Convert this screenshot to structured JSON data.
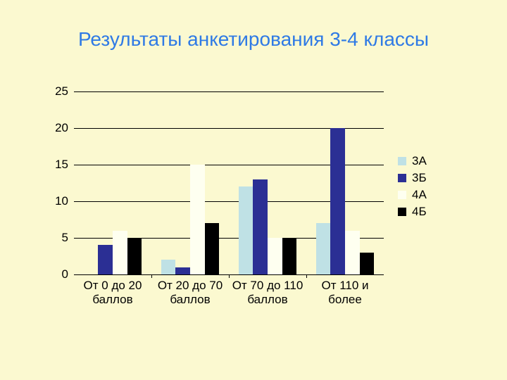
{
  "slide": {
    "background_color": "#fbf9d0",
    "title": "Результаты анкетирования 3-4 классы",
    "title_color": "#2f7ae5",
    "title_fontsize": 28
  },
  "chart": {
    "type": "bar",
    "ylim": [
      0,
      25
    ],
    "ytick_step": 5,
    "yticks": [
      0,
      5,
      10,
      15,
      20,
      25
    ],
    "ylabel_color": "#000000",
    "ylabel_fontsize": 17,
    "xlabel_color": "#000000",
    "xlabel_fontsize": 17,
    "background_color": "#fbf9d0",
    "grid_color": "#000000",
    "bar_group_gap": 0.25,
    "categories": [
      "От 0 до 20 баллов",
      "От 20 до 70 баллов",
      "От 70 до 110 баллов",
      "От 110 и более"
    ],
    "series": [
      {
        "name": "3А",
        "color": "#bfe1e5",
        "values": [
          0,
          2,
          12,
          7
        ]
      },
      {
        "name": "3Б",
        "color": "#2b2f94",
        "values": [
          4,
          1,
          13,
          20
        ]
      },
      {
        "name": "4А",
        "color": "#fefff0",
        "values": [
          6,
          15,
          5,
          6
        ]
      },
      {
        "name": "4Б",
        "color": "#000000",
        "values": [
          5,
          7,
          5,
          3
        ]
      }
    ],
    "legend_fontsize": 17,
    "legend_text_color": "#000000"
  }
}
